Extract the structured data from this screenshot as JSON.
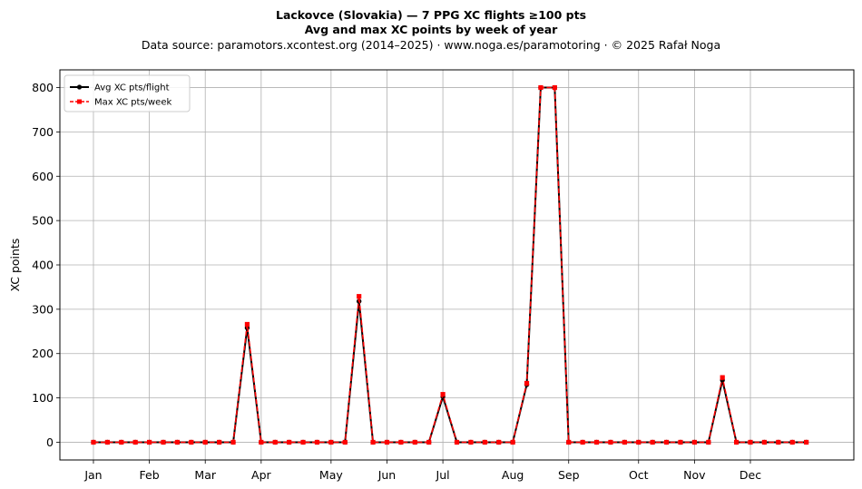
{
  "title": "Lackovce (Slovakia)  —  7 PPG XC flights ≥100 pts",
  "subtitle": "Avg and max XC points by week of year",
  "source_line": "Data source: paramotors.xcontest.org (2014–2025)  ·  www.noga.es/paramotoring  ·  © 2025 Rafał Noga",
  "chart_data": {
    "type": "line",
    "xlabel": "",
    "ylabel": "XC points",
    "xlim": [
      -2.4,
      54.4
    ],
    "ylim": [
      -40,
      840
    ],
    "yticks": [
      0,
      100,
      200,
      300,
      400,
      500,
      600,
      700,
      800
    ],
    "xticks": [
      {
        "label": "Jan",
        "x": 0
      },
      {
        "label": "Feb",
        "x": 4
      },
      {
        "label": "Mar",
        "x": 8
      },
      {
        "label": "Apr",
        "x": 12
      },
      {
        "label": "May",
        "x": 17
      },
      {
        "label": "Jun",
        "x": 21
      },
      {
        "label": "Jul",
        "x": 25
      },
      {
        "label": "Aug",
        "x": 30
      },
      {
        "label": "Sep",
        "x": 34
      },
      {
        "label": "Oct",
        "x": 39
      },
      {
        "label": "Nov",
        "x": 43
      },
      {
        "label": "Dec",
        "x": 47
      }
    ],
    "grid": true,
    "legend_position": "top-left",
    "x": [
      0,
      1,
      2,
      3,
      4,
      5,
      6,
      7,
      8,
      9,
      10,
      11,
      12,
      13,
      14,
      15,
      16,
      17,
      18,
      19,
      20,
      21,
      22,
      23,
      24,
      25,
      26,
      27,
      28,
      29,
      30,
      31,
      32,
      33,
      34,
      35,
      36,
      37,
      38,
      39,
      40,
      41,
      42,
      43,
      44,
      45,
      46,
      47,
      48,
      49,
      50,
      51
    ],
    "series": [
      {
        "name": "Avg XC pts/flight",
        "color": "#000000",
        "style": "solid-circle",
        "values": [
          0,
          0,
          0,
          0,
          0,
          0,
          0,
          0,
          0,
          0,
          0,
          258,
          0,
          0,
          0,
          0,
          0,
          0,
          0,
          318,
          0,
          0,
          0,
          0,
          0,
          103,
          0,
          0,
          0,
          0,
          0,
          130,
          800,
          800,
          0,
          0,
          0,
          0,
          0,
          0,
          0,
          0,
          0,
          0,
          0,
          140,
          0,
          0,
          0,
          0,
          0,
          0
        ]
      },
      {
        "name": "Max XC pts/week",
        "color": "#ff0000",
        "style": "dashed-square",
        "values": [
          0,
          0,
          0,
          0,
          0,
          0,
          0,
          0,
          0,
          0,
          0,
          266,
          0,
          0,
          0,
          0,
          0,
          0,
          0,
          329,
          0,
          0,
          0,
          0,
          0,
          108,
          0,
          0,
          0,
          0,
          0,
          133,
          800,
          800,
          0,
          0,
          0,
          0,
          0,
          0,
          0,
          0,
          0,
          0,
          0,
          146,
          0,
          0,
          0,
          0,
          0,
          0
        ]
      }
    ]
  }
}
